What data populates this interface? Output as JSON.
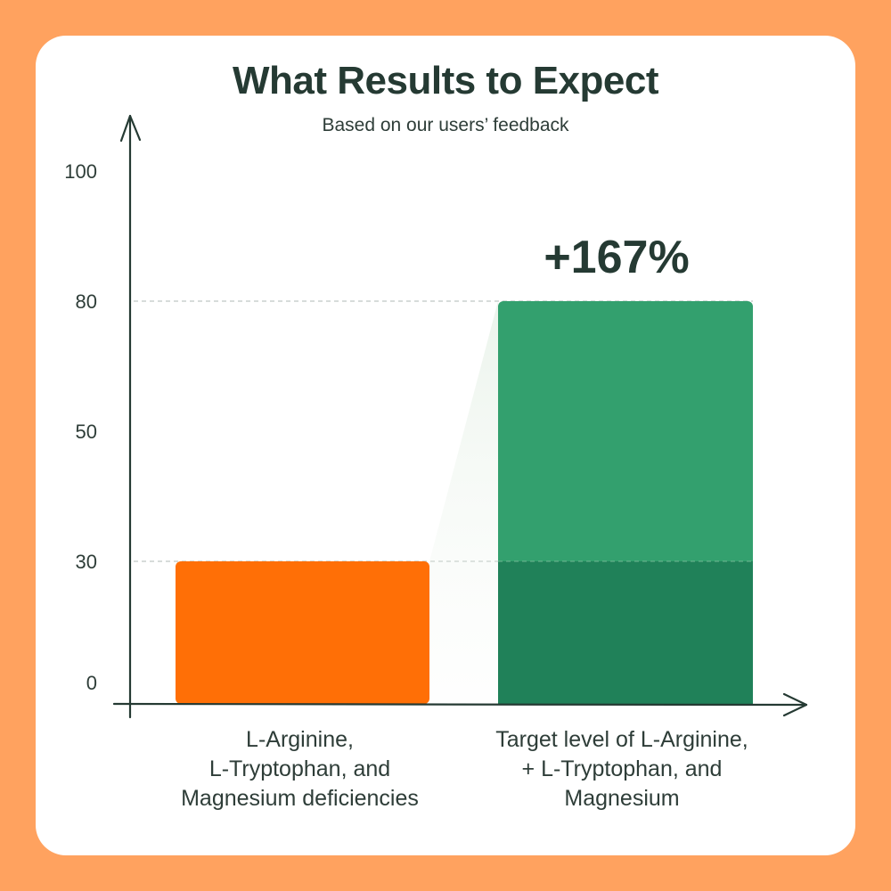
{
  "chart_data": {
    "type": "bar",
    "title": "What Results to Expect",
    "subtitle": "Based on our users’ feedback",
    "categories": [
      [
        "L-Arginine,",
        "L-Tryptophan, and",
        "Magnesium deficiencies"
      ],
      [
        "Target level of L-Arginine,",
        "+ L-Tryptophan, and",
        "Magnesium"
      ]
    ],
    "values": [
      30,
      80
    ],
    "y_ticks": [
      0,
      30,
      50,
      80,
      100
    ],
    "ylim": [
      0,
      100
    ],
    "reference_lines": [
      30,
      80
    ],
    "data_labels": [
      "",
      "+167%"
    ],
    "grid": false,
    "colors": {
      "bar_1": "#FF6F06",
      "bar_2_top": "#33A06E",
      "bar_2_base": "#208159",
      "axis": "#253A33",
      "reference_line": "#BFC8C4",
      "background": "#FFA25F"
    }
  }
}
